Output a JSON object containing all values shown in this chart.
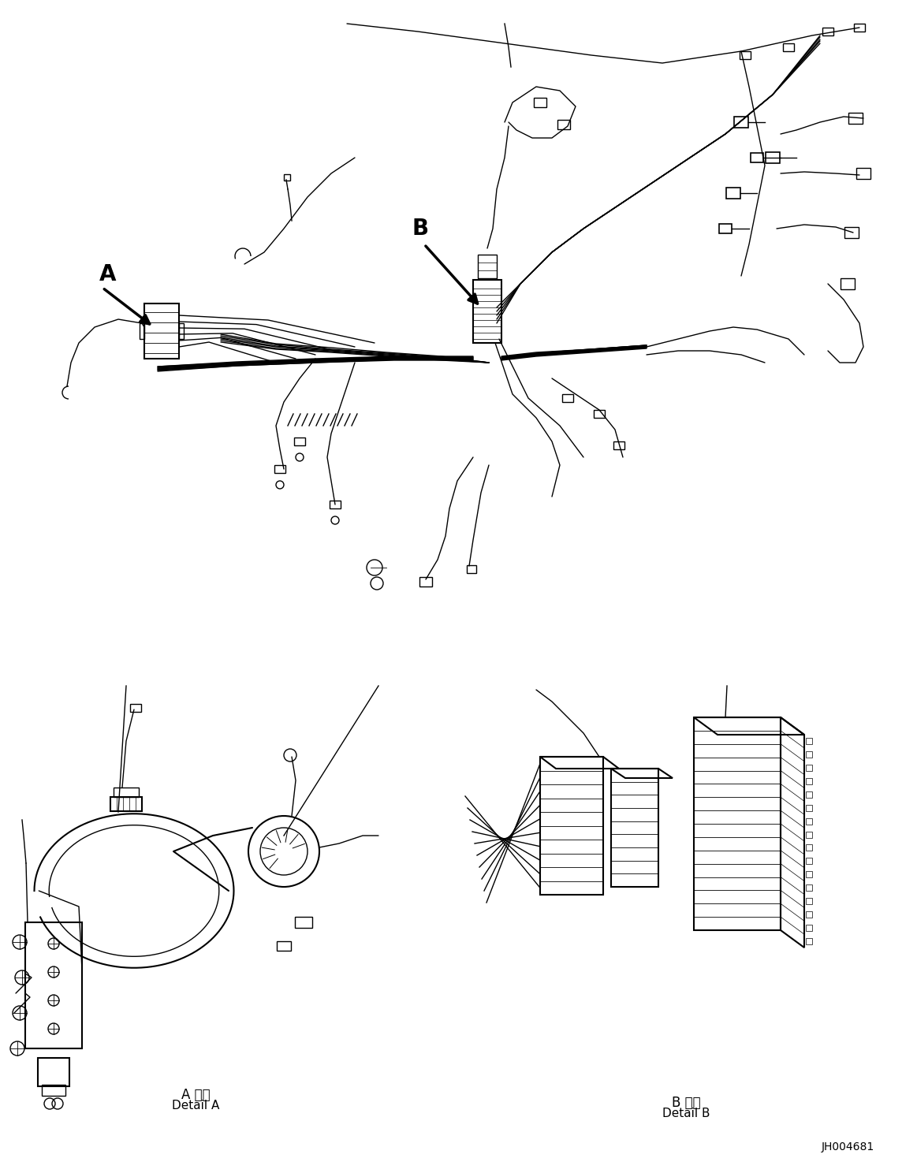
{
  "background_color": "#ffffff",
  "line_color": "#000000",
  "fig_width": 11.63,
  "fig_height": 14.88,
  "dpi": 100,
  "label_A_jp": "A 詳細",
  "label_A_en": "Detail A",
  "label_B_jp": "B 詳細",
  "label_B_en": "Detail B",
  "part_number": "JH004681"
}
